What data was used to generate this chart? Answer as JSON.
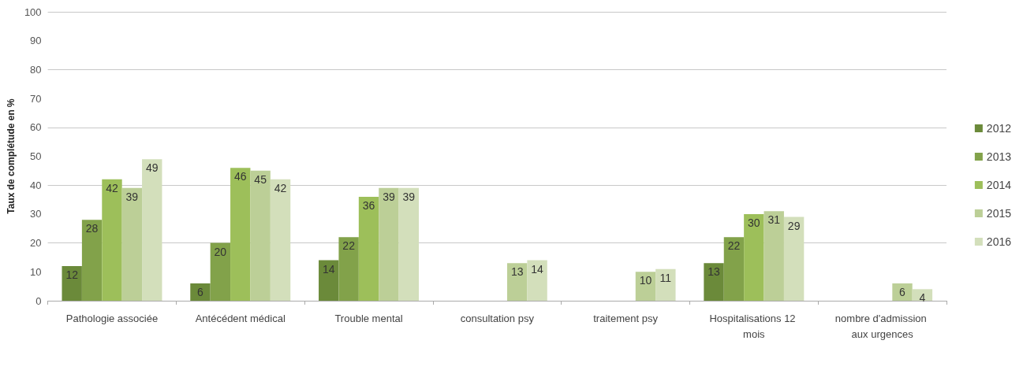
{
  "chart_data": {
    "type": "bar",
    "ylabel": "Taux de complétude en %",
    "categories": [
      "Pathologie associée",
      "Antécédent médical",
      "Trouble mental",
      "consultation psy",
      "traitement psy",
      "Hospitalisations 12 mois",
      "nombre d'admission aux urgences"
    ],
    "series": [
      {
        "name": "2012",
        "color": "#6b8a3a",
        "values": [
          12,
          6,
          14,
          null,
          null,
          13,
          null
        ]
      },
      {
        "name": "2013",
        "color": "#82a24a",
        "values": [
          28,
          20,
          22,
          null,
          null,
          22,
          null
        ]
      },
      {
        "name": "2014",
        "color": "#9dbf5a",
        "values": [
          42,
          46,
          36,
          null,
          null,
          30,
          null
        ]
      },
      {
        "name": "2015",
        "color": "#bccf97",
        "values": [
          39,
          45,
          39,
          13,
          10,
          31,
          6
        ]
      },
      {
        "name": "2016",
        "color": "#d3dfbb",
        "values": [
          49,
          42,
          39,
          14,
          11,
          29,
          4
        ]
      }
    ],
    "ylim": [
      0,
      100
    ],
    "yticks": [
      0,
      10,
      20,
      30,
      40,
      50,
      60,
      70,
      80,
      90,
      100
    ],
    "grid": "y",
    "legend": "right",
    "data_labels": true
  }
}
